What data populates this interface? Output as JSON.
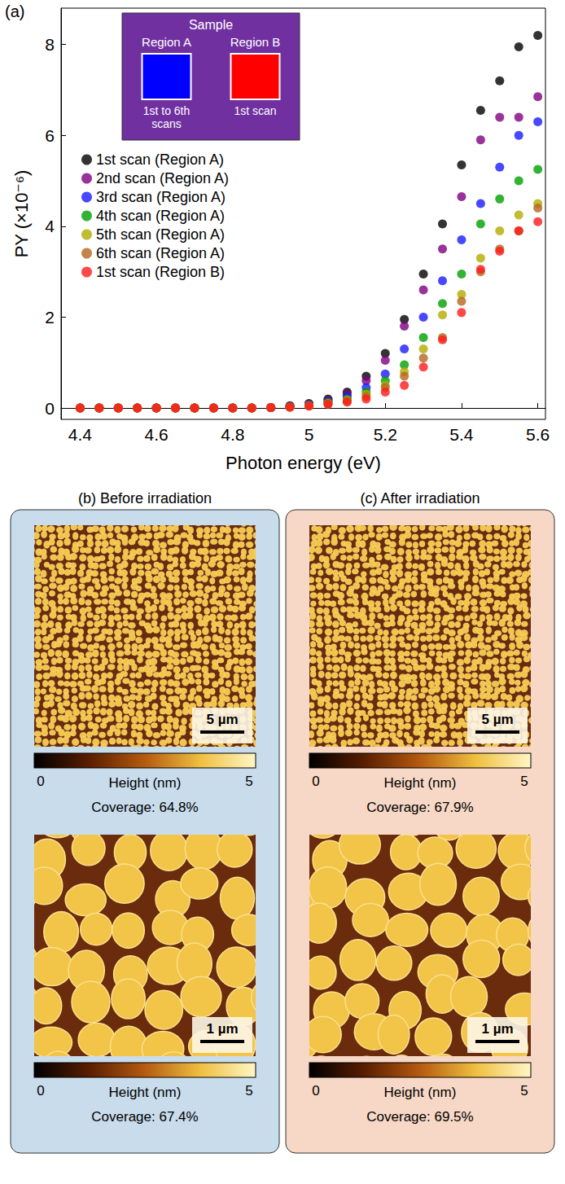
{
  "chart_data": {
    "type": "scatter",
    "panel_label": "(a)",
    "x_label": "Photon energy (eV)",
    "y_label": "PY (×10⁻⁶)",
    "xlim": [
      4.35,
      5.62
    ],
    "xticks": [
      4.4,
      4.6,
      4.8,
      5.0,
      5.2,
      5.4,
      5.6
    ],
    "ylim": [
      -0.25,
      8.8
    ],
    "yticks": [
      0,
      2,
      4,
      6,
      8
    ],
    "grid": false,
    "legend": "upper left",
    "marker": "circle",
    "x": [
      4.4,
      4.45,
      4.5,
      4.55,
      4.6,
      4.65,
      4.7,
      4.75,
      4.8,
      4.85,
      4.9,
      4.95,
      5.0,
      5.05,
      5.1,
      5.15,
      5.2,
      5.25,
      5.3,
      5.35,
      5.4,
      5.45,
      5.5,
      5.55,
      5.6
    ],
    "series": [
      {
        "name": "1st scan (Region A)",
        "color": "#000000",
        "values": [
          0,
          0,
          0,
          0,
          0,
          0,
          0,
          0,
          0,
          0,
          0.01,
          0.05,
          0.1,
          0.2,
          0.35,
          0.7,
          1.2,
          1.95,
          2.95,
          4.05,
          5.35,
          6.55,
          7.2,
          7.95,
          8.2
        ]
      },
      {
        "name": "2nd scan (Region A)",
        "color": "#800080",
        "values": [
          0,
          0,
          0,
          0,
          0,
          0,
          0,
          0,
          0,
          0,
          0.01,
          0.04,
          0.08,
          0.17,
          0.3,
          0.6,
          1.05,
          1.8,
          2.6,
          3.5,
          4.65,
          5.9,
          6.4,
          6.4,
          6.85
        ]
      },
      {
        "name": "3rd scan (Region A)",
        "color": "#1a1aff",
        "values": [
          0,
          0,
          0,
          0,
          0,
          0,
          0,
          0,
          0,
          0,
          0.01,
          0.03,
          0.07,
          0.14,
          0.25,
          0.45,
          0.75,
          1.3,
          2.0,
          2.8,
          3.7,
          4.5,
          5.3,
          6.0,
          6.3
        ]
      },
      {
        "name": "4th scan (Region A)",
        "color": "#00a000",
        "values": [
          0,
          0,
          0,
          0,
          0,
          0,
          0,
          0,
          0,
          0,
          0.01,
          0.03,
          0.06,
          0.12,
          0.2,
          0.35,
          0.6,
          0.95,
          1.55,
          2.3,
          2.95,
          4.05,
          4.6,
          5.0,
          5.25
        ]
      },
      {
        "name": "5th scan (Region A)",
        "color": "#b3ab00",
        "values": [
          0,
          0,
          0,
          0,
          0,
          0,
          0,
          0,
          0,
          0,
          0.01,
          0.02,
          0.05,
          0.1,
          0.17,
          0.3,
          0.5,
          0.8,
          1.3,
          2.05,
          2.5,
          3.3,
          3.9,
          4.25,
          4.5
        ]
      },
      {
        "name": "6th scan (Region A)",
        "color": "#b5651d",
        "values": [
          0,
          0,
          0,
          0,
          0,
          0,
          0,
          0,
          0,
          0,
          0.01,
          0.02,
          0.05,
          0.09,
          0.15,
          0.25,
          0.45,
          0.7,
          1.1,
          1.55,
          2.35,
          3.0,
          3.5,
          3.9,
          4.4
        ]
      },
      {
        "name": "1st scan (Region B)",
        "color": "#ff1a1a",
        "values": [
          0,
          0,
          0,
          0,
          0,
          0,
          0,
          0,
          0,
          0,
          0.01,
          0.02,
          0.04,
          0.08,
          0.13,
          0.2,
          0.35,
          0.5,
          0.9,
          1.5,
          2.1,
          3.05,
          3.45,
          3.9,
          4.1
        ]
      }
    ],
    "inset": {
      "title": "Sample",
      "color": "#7030a0",
      "regions": [
        {
          "label": "Region A",
          "color": "#0000ff",
          "note": "1st to 6th scans"
        },
        {
          "label": "Region B",
          "color": "#ff0000",
          "note": "1st scan"
        }
      ]
    }
  },
  "panels": [
    {
      "label": "(b)",
      "title": "Before irradiation",
      "color": "#c9dcec",
      "images": [
        {
          "scale_bar": "5 µm",
          "colorbar": {
            "min": 0,
            "max": 5,
            "label": "Height (nm)"
          },
          "coverage": "Coverage: 64.8%"
        },
        {
          "scale_bar": "1 µm",
          "colorbar": {
            "min": 0,
            "max": 5,
            "label": "Height (nm)"
          },
          "coverage": "Coverage: 67.4%"
        }
      ]
    },
    {
      "label": "(c)",
      "title": "After irradiation",
      "color": "#f7d8c6",
      "images": [
        {
          "scale_bar": "5 µm",
          "colorbar": {
            "min": 0,
            "max": 5,
            "label": "Height (nm)"
          },
          "coverage": "Coverage: 67.9%"
        },
        {
          "scale_bar": "1 µm",
          "colorbar": {
            "min": 0,
            "max": 5,
            "label": "Height (nm)"
          },
          "coverage": "Coverage: 69.5%"
        }
      ]
    }
  ]
}
